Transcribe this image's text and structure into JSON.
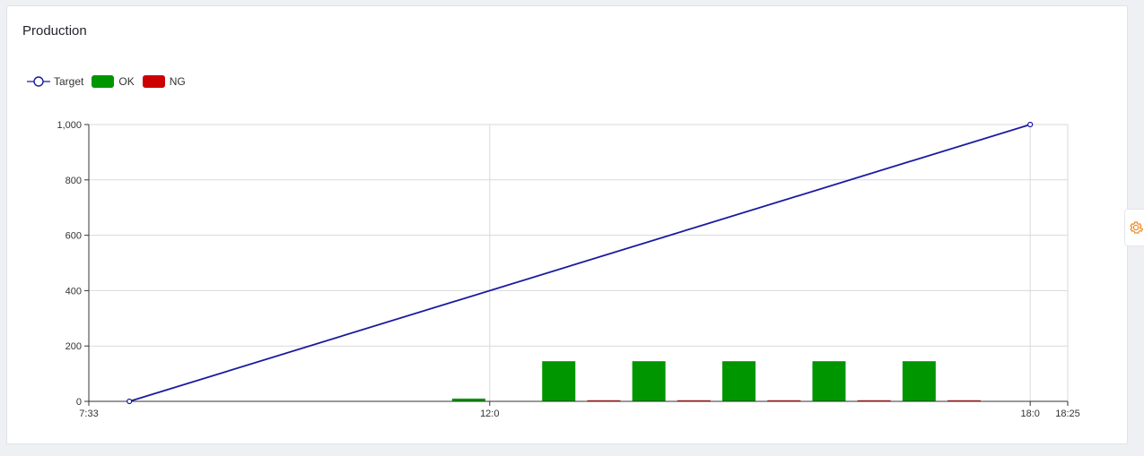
{
  "card": {
    "title": "Production"
  },
  "colors": {
    "target": "#1a1aa0",
    "ok": "#009600",
    "ng": "#cc0000",
    "grid": "#d9d9d9",
    "axis": "#333333",
    "gear": "#f08a24"
  },
  "legend": [
    {
      "label": "Target",
      "icon": "line-circle",
      "color": "#1a1aa0"
    },
    {
      "label": "OK",
      "icon": "box",
      "color": "#009600"
    },
    {
      "label": "NG",
      "icon": "box",
      "color": "#cc0000"
    }
  ],
  "gear": {
    "icon": "gear-icon"
  },
  "chart_data": {
    "type": "bar",
    "title": "",
    "xlabel": "",
    "ylabel": "",
    "grid": true,
    "legend_position": "top-left",
    "xlim_minutes": [
      453,
      1105
    ],
    "ylim": [
      0,
      1000
    ],
    "y_ticks": [
      0,
      200,
      400,
      600,
      800,
      1000
    ],
    "y_tick_labels": [
      "0",
      "200",
      "400",
      "600",
      "800",
      "1,000"
    ],
    "x_ticks": [
      {
        "minute": 453,
        "label": "7:33"
      },
      {
        "minute": 720,
        "label": "12:0"
      },
      {
        "minute": 1080,
        "label": "18:0"
      },
      {
        "minute": 1105,
        "label": "18:25"
      }
    ],
    "x_gridlines_minutes": [
      720,
      1080
    ],
    "series": [
      {
        "name": "Target",
        "type": "line",
        "color": "#1a1aa0",
        "points": [
          {
            "minute": 480,
            "value": 0
          },
          {
            "minute": 1080,
            "value": 1000
          }
        ]
      },
      {
        "name": "OK",
        "type": "bar",
        "color": "#009600",
        "bars": [
          {
            "minute": 706,
            "value": 10
          },
          {
            "minute": 766,
            "value": 145
          },
          {
            "minute": 826,
            "value": 145
          },
          {
            "minute": 886,
            "value": 145
          },
          {
            "minute": 946,
            "value": 145
          },
          {
            "minute": 1006,
            "value": 145
          }
        ]
      },
      {
        "name": "NG",
        "type": "bar",
        "color": "#cc0000",
        "bars": [
          {
            "minute": 796,
            "value": 2
          },
          {
            "minute": 856,
            "value": 2
          },
          {
            "minute": 916,
            "value": 2
          },
          {
            "minute": 976,
            "value": 2
          },
          {
            "minute": 1036,
            "value": 2
          }
        ]
      }
    ]
  }
}
